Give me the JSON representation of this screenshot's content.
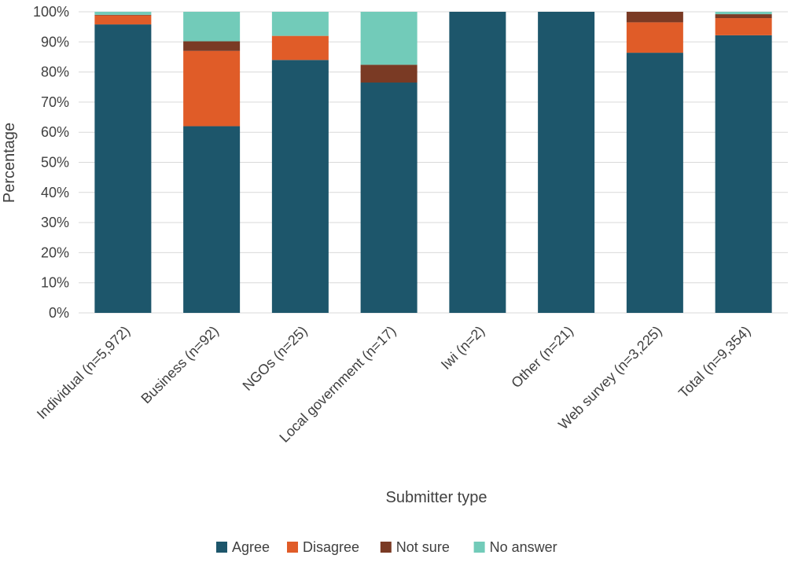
{
  "chart_data": {
    "type": "bar",
    "stacked": true,
    "xlabel": "Submitter type",
    "ylabel": "Percentage",
    "ylim": [
      0,
      100
    ],
    "y_tick_format": "percent",
    "y_ticks": [
      0,
      10,
      20,
      30,
      40,
      50,
      60,
      70,
      80,
      90,
      100
    ],
    "grid": true,
    "legend_position": "bottom",
    "categories": [
      "Individual (n=5,972)",
      "Business (n=92)",
      "NGOs (n=25)",
      "Local government (n=17)",
      "Iwi (n=2)",
      "Other (n=21)",
      "Web survey (n=3,225)",
      "Total (n=9,354)"
    ],
    "series": [
      {
        "name": "Agree",
        "color": "#1d566b",
        "values": [
          95.8,
          62.0,
          84.0,
          76.5,
          100,
          100,
          86.4,
          92.2
        ]
      },
      {
        "name": "Disagree",
        "color": "#e05c28",
        "values": [
          3.0,
          25.0,
          8.0,
          0,
          0,
          0,
          10.1,
          5.7
        ]
      },
      {
        "name": "Not sure",
        "color": "#7a3a24",
        "values": [
          0.2,
          3.2,
          0,
          5.9,
          0,
          0,
          3.5,
          1.3
        ]
      },
      {
        "name": "No answer",
        "color": "#72cbb9",
        "values": [
          1.0,
          9.8,
          8.0,
          17.6,
          0,
          0,
          0,
          0.8
        ]
      }
    ]
  }
}
